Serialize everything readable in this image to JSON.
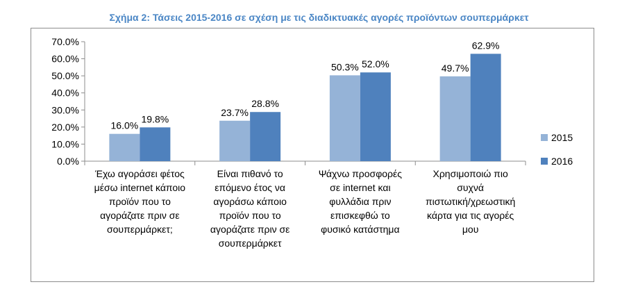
{
  "chart_data": {
    "type": "bar",
    "title": "Σχήμα 2: Τάσεις 2015-2016 σε σχέση με τις διαδικτυακές αγορές προϊόντων σουπερμάρκετ",
    "categories": [
      [
        "Έχω αγοράσει φέτος",
        "μέσω internet κάποιο",
        "προϊόν που το",
        "αγοράζατε πριν σε",
        "σουπερμάρκετ;"
      ],
      [
        "Είναι πιθανό το",
        "επόμενο έτος να",
        "αγοράσω κάποιο",
        "προϊόν που το",
        "αγοράζατε πριν σε",
        "σουπερμάρκετ"
      ],
      [
        "Ψάχνω προσφορές",
        "σε internet και",
        "φυλλάδια πριν",
        "επισκεφθώ το",
        "φυσικό κατάστημα"
      ],
      [
        "Χρησιμοποιώ πιο",
        "συχνά",
        "πιστωτική/χρεωστική",
        "κάρτα για τις αγορές",
        "μου"
      ]
    ],
    "series": [
      {
        "name": "2015",
        "values": [
          16.0,
          23.7,
          50.3,
          49.7
        ],
        "labels": [
          "16.0%",
          "23.7%",
          "50.3%",
          "49.7%"
        ],
        "color": "#95b3d7"
      },
      {
        "name": "2016",
        "values": [
          19.8,
          28.8,
          52.0,
          62.9
        ],
        "labels": [
          "19.8%",
          "28.8%",
          "52.0%",
          "62.9%"
        ],
        "color": "#4f81bd"
      }
    ],
    "ylim": [
      0,
      70
    ],
    "yticks": [
      "0.0%",
      "10.0%",
      "20.0%",
      "30.0%",
      "40.0%",
      "50.0%",
      "60.0%",
      "70.0%"
    ],
    "legend_position": "right",
    "grid": false
  }
}
